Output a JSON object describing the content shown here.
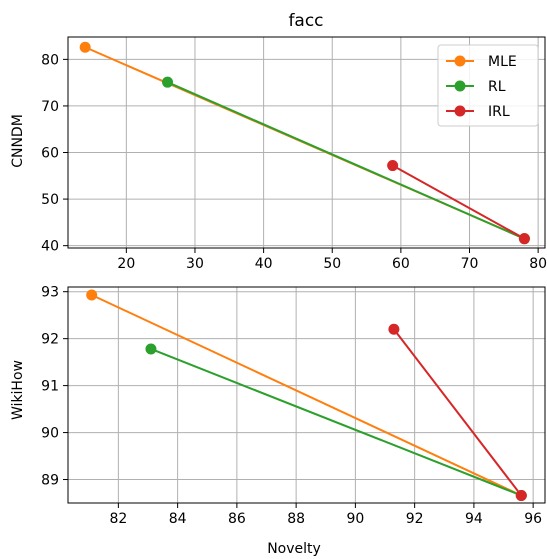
{
  "chart_data": [
    {
      "type": "line",
      "title": "facc",
      "xlabel": "",
      "ylabel": "CNNDM",
      "xlim": [
        11.5,
        81.0
      ],
      "ylim": [
        39.5,
        84.8
      ],
      "xticks": [
        20,
        30,
        40,
        50,
        60,
        70,
        80
      ],
      "yticks": [
        40,
        50,
        60,
        70,
        80
      ],
      "grid": true,
      "legend": "top-right",
      "series": [
        {
          "name": "MLE",
          "color": "#ff7f0e",
          "x": [
            14.0,
            78.0
          ],
          "y": [
            82.6,
            41.5
          ]
        },
        {
          "name": "RL",
          "color": "#2ca02c",
          "x": [
            26.0,
            78.0
          ],
          "y": [
            75.1,
            41.5
          ]
        },
        {
          "name": "IRL",
          "color": "#d62728",
          "x": [
            58.8,
            78.0
          ],
          "y": [
            57.2,
            41.5
          ]
        }
      ]
    },
    {
      "type": "line",
      "title": "",
      "xlabel": "Novelty",
      "ylabel": "WikiHow",
      "xlim": [
        80.3,
        96.4
      ],
      "ylim": [
        88.5,
        93.1
      ],
      "xticks": [
        82,
        84,
        86,
        88,
        90,
        92,
        94,
        96
      ],
      "yticks": [
        89,
        90,
        91,
        92,
        93
      ],
      "grid": true,
      "series": [
        {
          "name": "MLE",
          "color": "#ff7f0e",
          "x": [
            81.1,
            95.6
          ],
          "y": [
            92.93,
            88.66
          ]
        },
        {
          "name": "RL",
          "color": "#2ca02c",
          "x": [
            83.1,
            95.6
          ],
          "y": [
            91.78,
            88.66
          ]
        },
        {
          "name": "IRL",
          "color": "#d62728",
          "x": [
            91.3,
            95.6
          ],
          "y": [
            92.2,
            88.66
          ]
        }
      ]
    }
  ]
}
